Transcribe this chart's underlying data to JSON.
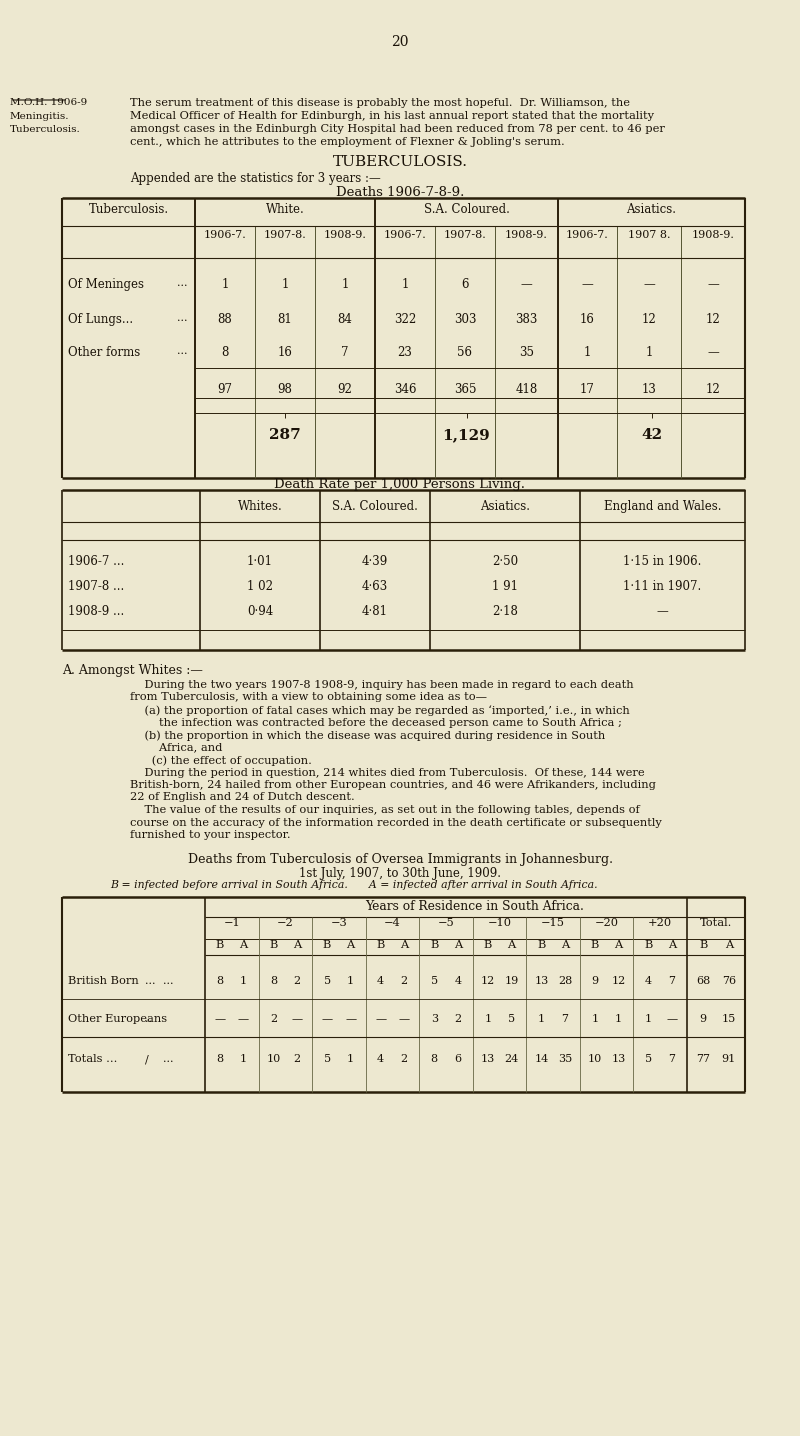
{
  "bg_color": "#ede8d0",
  "text_color": "#1a1208",
  "page_number": "20",
  "header_left_lines": [
    "M.O.H. 1906-9",
    "Meningitis.",
    "Tuberculosis."
  ],
  "header_para_lines": [
    "The serum treatment of this disease is probably the most hopeful.  Dr. Williamson, the",
    "Medical Officer of Health for Edinburgh, in his last annual report stated that the mortality",
    "amongst cases in the Edinburgh City Hospital had been reduced from 78 per cent. to 46 per",
    "cent., which he attributes to the employment of Flexner & Jobling's serum."
  ],
  "section_title": "TUBERCULOSIS.",
  "appended_text": "Appended are the statistics for 3 years :—",
  "deaths_title": "Deaths 1906-7-8-9.",
  "tb_col_headers": [
    "Tuberculosis.",
    "White.",
    "S.A. Coloured.",
    "Asiatics."
  ],
  "tb_sub_cols_w": [
    "1906-7.",
    "1907-8.",
    "1908-9."
  ],
  "tb_sub_cols_sac": [
    "1906-7.",
    "1907-8.",
    "1908-9."
  ],
  "tb_sub_cols_asi": [
    "1906-7.",
    "1907 8.",
    "1908-9."
  ],
  "tb_rows": [
    [
      "Of Meninges",
      "1",
      "1",
      "1",
      "1",
      "6",
      "—",
      "—",
      "—",
      "—"
    ],
    [
      "Of Lungs...",
      "88",
      "81",
      "84",
      "322",
      "303",
      "383",
      "16",
      "12",
      "12"
    ],
    [
      "Other forms",
      "8",
      "16",
      "7",
      "23",
      "56",
      "35",
      "1",
      "1",
      "—"
    ]
  ],
  "tb_totals": [
    "97",
    "98",
    "92",
    "346",
    "365",
    "418",
    "17",
    "13",
    "12"
  ],
  "tb_grand_totals": [
    "287",
    "1,129",
    "42"
  ],
  "death_rate_title": "Death Rate per 1,000 Persons Living.",
  "dr_headers": [
    "Whites.",
    "S.A. Coloured.",
    "Asiatics.",
    "England and Wales."
  ],
  "dr_rows": [
    [
      "1906-7 ...",
      "1·01",
      "4·39",
      "2·50",
      "1·15 in 1906."
    ],
    [
      "1907-8 ...",
      "1 02",
      "4·63",
      "1 91",
      "1·11 in 1907."
    ],
    [
      "1908-9 ...",
      "0·94",
      "4·81",
      "2·18",
      "—"
    ]
  ],
  "section_a_title": "A. Amongst Whites :—",
  "section_a_body": [
    "    During the two years 1907-8 1908-9, inquiry has been made in regard to each death",
    "from Tuberculosis, with a view to obtaining some idea as to—",
    "    (a) the proportion of fatal cases which may be regarded as ‘imported,’ i.e., in which",
    "        the infection was contracted before the deceased person came to South Africa ;",
    "    (b) the proportion in which the disease was acquired during residence in South",
    "        Africa, and",
    "      (c) the effect of occupation.",
    "    During the period in question, 214 whites died from Tuberculosis.  Of these, 144 were",
    "British-born, 24 hailed from other European countries, and 46 were Afrikanders, including",
    "22 of English and 24 of Dutch descent.",
    "    The value of the results of our inquiries, as set out in the following tables, depends of",
    "course on the accuracy of the information recorded in the death certificate or subsequently",
    "furnished to your inspector."
  ],
  "imm_title": "Deaths from Tuberculosis of Oversea Immigrants in Johannesburg.",
  "imm_subtitle1": "1st July, 1907, to 30th June, 1909.",
  "imm_subtitle2": "B = infected before arrival in South Africa.      A = infected after arrival in South Africa.",
  "imm_year_labels": [
    "−1",
    "−2",
    "−3",
    "−4",
    "−5",
    "−10",
    "−15",
    "−20",
    "+20",
    "Total."
  ],
  "imm_rows": [
    [
      "British Born",
      "...",
      "...",
      "8",
      "1",
      "8",
      "2",
      "5",
      "1",
      "4",
      "2",
      "5",
      "4",
      "12",
      "19",
      "13",
      "28",
      "9",
      "12",
      "4",
      "7",
      "68",
      "76"
    ],
    [
      "Other Europeans",
      "..",
      "",
      "—",
      "—",
      "2",
      "—",
      "—",
      "—",
      "—",
      "—",
      "3",
      "2",
      "1",
      "5",
      "1",
      "7",
      "1",
      "1",
      "1",
      "—",
      "9",
      "15"
    ],
    [
      "Totals ...",
      "/",
      "...",
      "8",
      "1",
      "10",
      "2",
      "5",
      "1",
      "4",
      "2",
      "8",
      "6",
      "13",
      "24",
      "14",
      "35",
      "10",
      "13",
      "5",
      "7",
      "77",
      "91"
    ]
  ]
}
